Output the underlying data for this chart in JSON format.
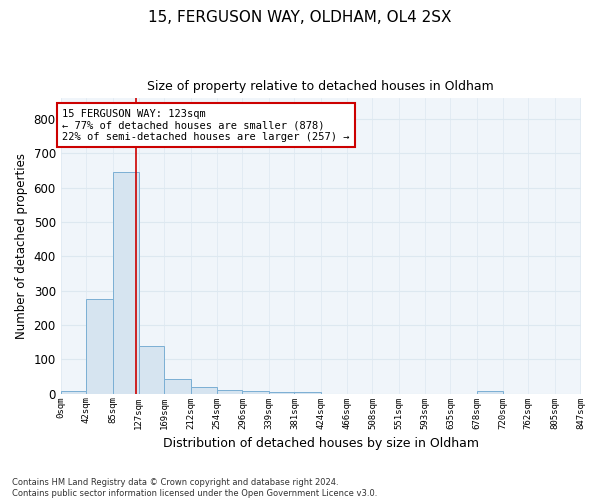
{
  "title_line1": "15, FERGUSON WAY, OLDHAM, OL4 2SX",
  "title_line2": "Size of property relative to detached houses in Oldham",
  "xlabel": "Distribution of detached houses by size in Oldham",
  "ylabel": "Number of detached properties",
  "bin_edges": [
    0,
    42,
    85,
    127,
    169,
    212,
    254,
    296,
    339,
    381,
    424,
    466,
    508,
    551,
    593,
    635,
    678,
    720,
    762,
    805,
    847
  ],
  "bar_heights": [
    8,
    275,
    645,
    140,
    42,
    18,
    11,
    9,
    6,
    4,
    0,
    0,
    0,
    0,
    0,
    0,
    7,
    0,
    0,
    0
  ],
  "bar_color": "#d6e4f0",
  "bar_edge_color": "#7bafd4",
  "grid_color": "#dde8f0",
  "vline_x": 123,
  "vline_color": "#cc0000",
  "annotation_text": "15 FERGUSON WAY: 123sqm\n← 77% of detached houses are smaller (878)\n22% of semi-detached houses are larger (257) →",
  "annotation_box_color": "#ffffff",
  "annotation_box_edge_color": "#cc0000",
  "ylim": [
    0,
    860
  ],
  "yticks": [
    0,
    100,
    200,
    300,
    400,
    500,
    600,
    700,
    800
  ],
  "footnote": "Contains HM Land Registry data © Crown copyright and database right 2024.\nContains public sector information licensed under the Open Government Licence v3.0.",
  "bg_color": "#ffffff",
  "plot_bg_color": "#f0f5fa"
}
